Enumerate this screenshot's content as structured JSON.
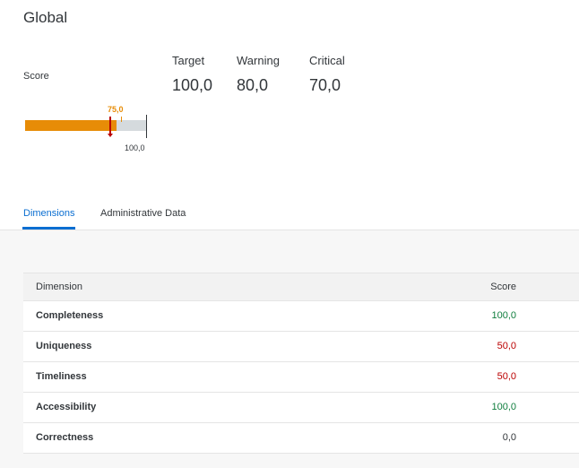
{
  "page": {
    "title": "Global"
  },
  "score": {
    "label": "Score",
    "value_label": "75,0",
    "max_label": "100,0",
    "value": 75,
    "max": 100
  },
  "kpis": [
    {
      "label": "Target",
      "value": "100,0"
    },
    {
      "label": "Warning",
      "value": "80,0"
    },
    {
      "label": "Critical",
      "value": "70,0"
    }
  ],
  "tabs": [
    {
      "label": "Dimensions",
      "active": true
    },
    {
      "label": "Administrative Data",
      "active": false
    }
  ],
  "table": {
    "headers": {
      "dimension": "Dimension",
      "score": "Score"
    },
    "rows": [
      {
        "dimension": "Completeness",
        "score": "100,0",
        "status_color": "#107e3e"
      },
      {
        "dimension": "Uniqueness",
        "score": "50,0",
        "status_color": "#bb0000"
      },
      {
        "dimension": "Timeliness",
        "score": "50,0",
        "status_color": "#bb0000"
      },
      {
        "dimension": "Accessibility",
        "score": "100,0",
        "status_color": "#107e3e"
      },
      {
        "dimension": "Correctness",
        "score": "0,0",
        "status_color": "#32363a"
      }
    ]
  },
  "colors": {
    "accent": "#0a6ed1",
    "bar_fill": "#e78c07",
    "critical": "#bb0000",
    "good": "#107e3e"
  }
}
